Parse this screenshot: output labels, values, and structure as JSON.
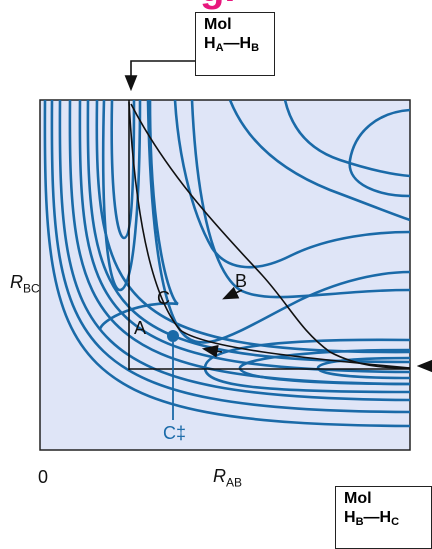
{
  "top_fragment": "g.",
  "box_top": {
    "line1": "Mol",
    "atom1": "H",
    "sub1": "A",
    "bond": "—",
    "atom2": "H",
    "sub2": "B"
  },
  "box_bottom": {
    "line1": "Mol",
    "atom1": "H",
    "sub1": "B",
    "bond": "—",
    "atom2": "H",
    "sub2": "C"
  },
  "axes": {
    "y_label_main": "R",
    "y_label_sub": "BC",
    "x_label_main": "R",
    "x_label_sub": "AB",
    "origin": "0"
  },
  "path_labels": {
    "a": "A",
    "b": "B",
    "c": "C",
    "ts": "C‡"
  },
  "colors": {
    "background": "#dfe5f7",
    "contour": "#1a6aa8",
    "path": "#111111",
    "accent": "#e8177d"
  }
}
